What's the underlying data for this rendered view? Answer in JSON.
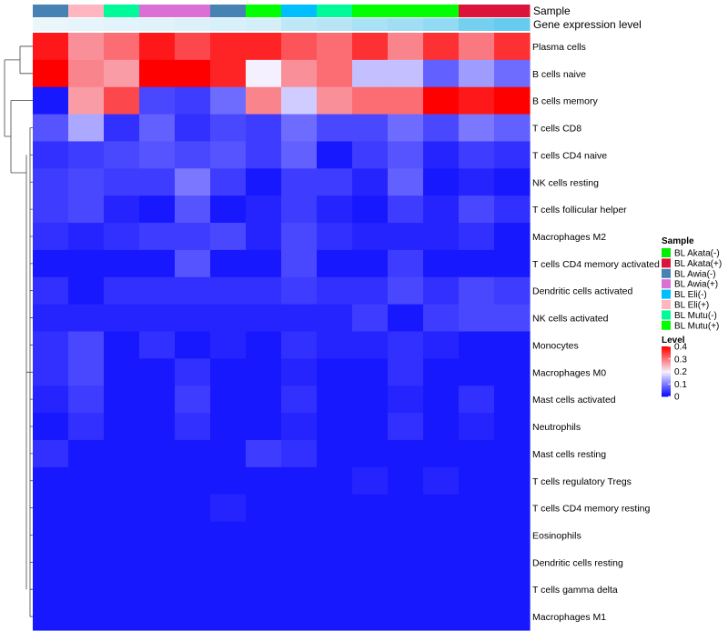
{
  "chart_data": {
    "type": "heatmap",
    "annotation_titles": [
      "Sample",
      "Gene expression level"
    ],
    "columns": [
      "BL Awia(-)",
      "BL Eli(+)",
      "BL Mutu(-)",
      "BL Awia(+)",
      "BL Awia(+)",
      "BL Awia(-)",
      "BL Mutu(+)",
      "BL Eli(-)",
      "BL Mutu(-)",
      "BL Mutu(+)",
      "BL Mutu(+)",
      "BL Mutu(+)",
      "BL Akata(+)",
      "BL Akata(+)"
    ],
    "expression_level": [
      0.05,
      0.08,
      0.1,
      0.12,
      0.15,
      0.18,
      0.2,
      0.35,
      0.4,
      0.5,
      0.55,
      0.65,
      0.85,
      0.95
    ],
    "rows": [
      "Plasma cells",
      "B cells naive",
      "B cells memory",
      "T cells CD8",
      "T cells CD4 naive",
      "NK cells resting",
      "T cells follicular helper",
      "Macrophages M2",
      "T cells CD4 memory activated",
      "Dendritic cells activated",
      "NK cells activated",
      "Monocytes",
      "Macrophages M0",
      "Mast cells activated",
      "Neutrophils",
      "Mast cells resting",
      "T cells regulatory  Tregs",
      "T cells CD4 memory resting",
      "Eosinophils",
      "Dendritic cells resting",
      "T cells gamma delta",
      "Macrophages M1"
    ],
    "values": [
      [
        0.38,
        0.28,
        0.31,
        0.38,
        0.34,
        0.37,
        0.37,
        0.33,
        0.31,
        0.36,
        0.29,
        0.36,
        0.3,
        0.36
      ],
      [
        0.42,
        0.29,
        0.27,
        0.44,
        0.44,
        0.37,
        0.2,
        0.28,
        0.31,
        0.16,
        0.16,
        0.08,
        0.13,
        0.09
      ],
      [
        0.02,
        0.27,
        0.34,
        0.06,
        0.05,
        0.09,
        0.29,
        0.17,
        0.28,
        0.31,
        0.31,
        0.43,
        0.38,
        0.43
      ],
      [
        0.07,
        0.14,
        0.04,
        0.08,
        0.04,
        0.06,
        0.05,
        0.09,
        0.06,
        0.06,
        0.09,
        0.06,
        0.1,
        0.08
      ],
      [
        0.04,
        0.05,
        0.06,
        0.07,
        0.06,
        0.07,
        0.05,
        0.08,
        0.02,
        0.05,
        0.07,
        0.03,
        0.05,
        0.04
      ],
      [
        0.05,
        0.06,
        0.05,
        0.05,
        0.1,
        0.05,
        0.02,
        0.05,
        0.05,
        0.03,
        0.08,
        0.02,
        0.03,
        0.02
      ],
      [
        0.05,
        0.06,
        0.03,
        0.02,
        0.07,
        0.02,
        0.03,
        0.05,
        0.03,
        0.02,
        0.05,
        0.03,
        0.06,
        0.04
      ],
      [
        0.04,
        0.03,
        0.04,
        0.05,
        0.05,
        0.06,
        0.03,
        0.06,
        0.04,
        0.03,
        0.03,
        0.03,
        0.04,
        0.02
      ],
      [
        0.02,
        0.02,
        0.02,
        0.02,
        0.07,
        0.02,
        0.02,
        0.06,
        0.02,
        0.02,
        0.05,
        0.02,
        0.02,
        0.02
      ],
      [
        0.04,
        0.02,
        0.04,
        0.04,
        0.04,
        0.04,
        0.04,
        0.05,
        0.04,
        0.04,
        0.06,
        0.04,
        0.06,
        0.05
      ],
      [
        0.03,
        0.03,
        0.03,
        0.03,
        0.03,
        0.03,
        0.03,
        0.03,
        0.03,
        0.05,
        0.02,
        0.05,
        0.06,
        0.06
      ],
      [
        0.04,
        0.06,
        0.02,
        0.04,
        0.02,
        0.03,
        0.02,
        0.04,
        0.03,
        0.03,
        0.04,
        0.03,
        0.02,
        0.02
      ],
      [
        0.04,
        0.06,
        0.02,
        0.02,
        0.04,
        0.02,
        0.02,
        0.03,
        0.02,
        0.02,
        0.04,
        0.02,
        0.02,
        0.02
      ],
      [
        0.03,
        0.05,
        0.02,
        0.02,
        0.05,
        0.02,
        0.02,
        0.04,
        0.02,
        0.02,
        0.03,
        0.02,
        0.04,
        0.02
      ],
      [
        0.02,
        0.04,
        0.02,
        0.02,
        0.04,
        0.02,
        0.02,
        0.03,
        0.02,
        0.02,
        0.04,
        0.02,
        0.03,
        0.02
      ],
      [
        0.04,
        0.02,
        0.02,
        0.02,
        0.02,
        0.02,
        0.05,
        0.04,
        0.02,
        0.02,
        0.02,
        0.02,
        0.02,
        0.02
      ],
      [
        0.02,
        0.02,
        0.02,
        0.02,
        0.02,
        0.02,
        0.02,
        0.02,
        0.02,
        0.03,
        0.02,
        0.03,
        0.02,
        0.02
      ],
      [
        0.02,
        0.02,
        0.02,
        0.02,
        0.02,
        0.03,
        0.02,
        0.02,
        0.02,
        0.02,
        0.02,
        0.02,
        0.02,
        0.02
      ],
      [
        0.02,
        0.02,
        0.02,
        0.02,
        0.02,
        0.02,
        0.02,
        0.02,
        0.02,
        0.02,
        0.02,
        0.02,
        0.02,
        0.02
      ],
      [
        0.02,
        0.02,
        0.02,
        0.02,
        0.02,
        0.02,
        0.02,
        0.02,
        0.02,
        0.02,
        0.02,
        0.02,
        0.02,
        0.02
      ],
      [
        0.02,
        0.02,
        0.02,
        0.02,
        0.02,
        0.02,
        0.02,
        0.02,
        0.02,
        0.02,
        0.02,
        0.02,
        0.02,
        0.02
      ],
      [
        0.02,
        0.02,
        0.02,
        0.02,
        0.02,
        0.02,
        0.02,
        0.02,
        0.02,
        0.02,
        0.02,
        0.02,
        0.02,
        0.02
      ]
    ],
    "color_scale": {
      "stops": [
        {
          "value": 0,
          "color": "#0000ff"
        },
        {
          "value": 0.2,
          "color": "#f5f0ff"
        },
        {
          "value": 0.4,
          "color": "#ff0000"
        }
      ]
    },
    "expression_colors": {
      "low": "#f2f8fc",
      "high": "#5fc9ee"
    },
    "legend": {
      "sample_title": "Sample",
      "samples": [
        {
          "label": "BL Akata(-)",
          "color": "#00ee00"
        },
        {
          "label": "BL Akata(+)",
          "color": "#dc143c"
        },
        {
          "label": "BL Awia(-)",
          "color": "#4682b4"
        },
        {
          "label": "BL Awia(+)",
          "color": "#da70d6"
        },
        {
          "label": "BL Eli(-)",
          "color": "#00bfff"
        },
        {
          "label": "BL Eli(+)",
          "color": "#ffb6c1"
        },
        {
          "label": "BL Mutu(-)",
          "color": "#00fa9a"
        },
        {
          "label": "BL Mutu(+)",
          "color": "#00ff00"
        }
      ],
      "level_title": "Level",
      "level_ticks": [
        "0.4",
        "0.3",
        "0.2",
        "0.1",
        "0"
      ],
      "level_tick_values": [
        0.4,
        0.3,
        0.2,
        0.1,
        0
      ]
    }
  }
}
